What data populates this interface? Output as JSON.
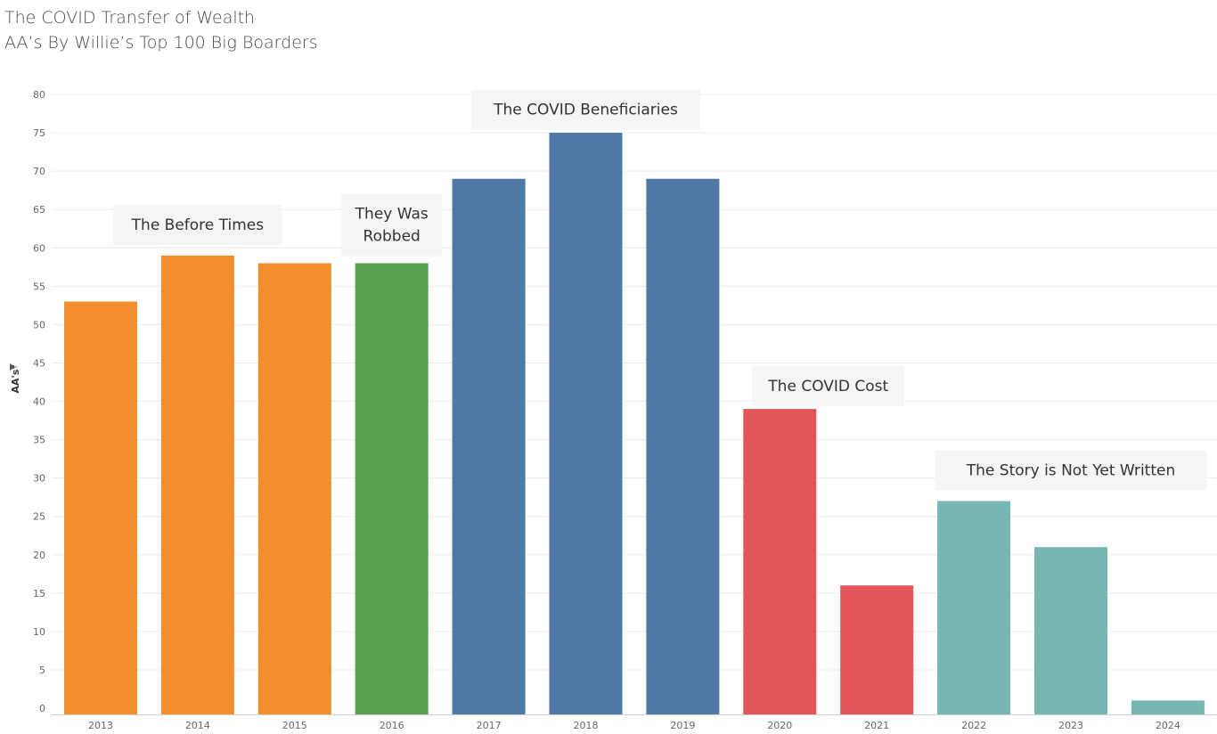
{
  "header": {
    "title": "The COVID Transfer of Wealth",
    "subtitle": "AA’s By Willie’s Top 100 Big Boarders"
  },
  "chart_data": {
    "type": "bar",
    "ylabel": "AA's",
    "ylim": [
      0,
      80
    ],
    "ytick_step": 5,
    "grid": true,
    "categories": [
      "2013",
      "2014",
      "2015",
      "2016",
      "2017",
      "2018",
      "2019",
      "2020",
      "2021",
      "2022",
      "2023",
      "2024"
    ],
    "values": [
      53,
      59,
      58,
      58,
      69,
      75,
      69,
      39,
      16,
      27,
      21,
      1
    ],
    "bar_colors": [
      "#f28e2b",
      "#f28e2b",
      "#f28e2b",
      "#59a14f",
      "#4e79a7",
      "#4e79a7",
      "#4e79a7",
      "#e15759",
      "#e15759",
      "#76b7b2",
      "#76b7b2",
      "#76b7b2"
    ],
    "annotations": [
      {
        "lines": [
          "The Before Times"
        ],
        "categories": [
          "2014"
        ],
        "y": 63
      },
      {
        "lines": [
          "They Was",
          "Robbed"
        ],
        "categories": [
          "2016"
        ],
        "y": 63
      },
      {
        "lines": [
          "The COVID Beneficiaries"
        ],
        "categories": [
          "2018"
        ],
        "y": 78
      },
      {
        "lines": [
          "The COVID Cost"
        ],
        "categories": [
          "2020",
          "2021"
        ],
        "y": 42
      },
      {
        "lines": [
          "The Story is Not Yet Written"
        ],
        "categories": [
          "2023"
        ],
        "y": 31
      }
    ]
  },
  "colors": {
    "grid": "#ececec",
    "annotation_bg": "#f5f5f5",
    "text": "#333333"
  },
  "icons": {
    "axis_pin": "pin-icon"
  }
}
